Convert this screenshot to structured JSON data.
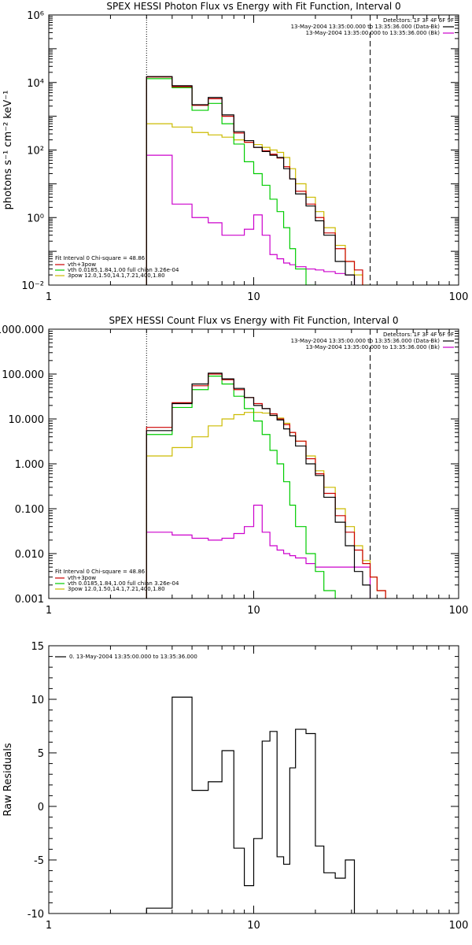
{
  "chart_data": [
    {
      "type": "line",
      "title": "SPEX HESSI Photon Flux vs Energy with Fit Function, Interval 0",
      "xlabel": "",
      "ylabel": "photons s⁻¹ cm⁻² keV⁻¹",
      "xscale": "log",
      "yscale": "log",
      "xlim": [
        1,
        100
      ],
      "ylim": [
        0.01,
        1000000
      ],
      "x_ticks": [
        1,
        10,
        100
      ],
      "x_tick_labels": [
        "1",
        "10",
        "100"
      ],
      "y_ticks": [
        0.01,
        1,
        100,
        10000,
        1000000
      ],
      "y_tick_labels": [
        "10⁻²",
        "10⁰",
        "10²",
        "10⁴",
        "10⁶"
      ],
      "vlines": {
        "dotted": 3.0,
        "dashed": 37.0
      },
      "legend_top": {
        "header": "Detectors: 1F 3F 4F 6F 9F",
        "entries": [
          {
            "label": "13-May-2004 13:35:00.000 to 13:35:36.000 (Data-Bk)",
            "color": "#000000"
          },
          {
            "label": "13-May-2004 13:35:00.000 to 13:35:36.000 (Bk)",
            "color": "#cc00cc"
          }
        ]
      },
      "legend_bottom": {
        "header": "Fit Interval 0   Chi-square = 48.86",
        "entries": [
          {
            "label": "vth+3pow",
            "color": "#cc0000"
          },
          {
            "label": "vth 0.0185,1.84,1.00  full chian 3.26e-04",
            "color": "#00cc00"
          },
          {
            "label": "3pow 12.0,1.50,14.1,7.21,400,1.80",
            "color": "#ccbb00"
          }
        ]
      },
      "edges": [
        3.0,
        4.0,
        5.0,
        6.0,
        7.0,
        8.0,
        9.0,
        10.0,
        11.0,
        12.0,
        13.0,
        14.0,
        15.0,
        16.0,
        18.0,
        20.0,
        22.0,
        25.0,
        28.0,
        31.0,
        34.0,
        37.0,
        40.0,
        44.0,
        49.0
      ],
      "series": [
        {
          "name": "Data-Bk",
          "color": "#000000",
          "values": [
            15000,
            8000,
            2200,
            3600,
            1100,
            350,
            190,
            120,
            90,
            70,
            60,
            28,
            14,
            5,
            2.2,
            0.8,
            0.3,
            0.05,
            0.02
          ]
        },
        {
          "name": "vth+3pow",
          "color": "#cc0000",
          "values": [
            14500,
            7500,
            2100,
            3300,
            1000,
            320,
            170,
            120,
            95,
            75,
            58,
            32,
            14,
            6,
            2.5,
            1.0,
            0.35,
            0.12,
            0.05,
            0.028
          ]
        },
        {
          "name": "vth",
          "color": "#00cc00",
          "values": [
            13000,
            7000,
            1500,
            2400,
            600,
            150,
            45,
            20,
            9,
            3.5,
            1.5,
            0.5,
            0.12,
            0.03,
            0.01
          ]
        },
        {
          "name": "3pow",
          "color": "#ccbb00",
          "values": [
            600,
            480,
            330,
            280,
            240,
            200,
            170,
            145,
            120,
            100,
            85,
            60,
            28,
            10,
            4,
            1.5,
            0.5,
            0.15,
            0.05,
            0.02,
            0.01
          ]
        },
        {
          "name": "Bk",
          "color": "#cc00cc",
          "values": [
            70,
            2.5,
            1.0,
            0.7,
            0.3,
            0.3,
            0.45,
            1.2,
            0.3,
            0.08,
            0.06,
            0.045,
            0.04,
            0.035,
            0.03,
            0.028,
            0.025,
            0.022,
            0.02
          ]
        }
      ]
    },
    {
      "type": "line",
      "title": "SPEX HESSI Count Flux vs Energy with Fit Function, Interval 0",
      "xlabel": "",
      "ylabel": "",
      "xscale": "log",
      "yscale": "log",
      "xlim": [
        1,
        100
      ],
      "ylim": [
        0.001,
        1000
      ],
      "x_ticks": [
        1,
        10,
        100
      ],
      "x_tick_labels": [
        "1",
        "10",
        "100"
      ],
      "y_ticks": [
        0.001,
        0.01,
        0.1,
        1,
        10,
        100,
        1000
      ],
      "y_tick_labels": [
        "0.001",
        "0.010",
        "0.100",
        "1.000",
        "10.000",
        "100.000",
        "1000.000"
      ],
      "vlines": {
        "dotted": 3.0,
        "dashed": 37.0
      },
      "legend_top": {
        "header": "Detectors: 1F 3F 4F 6F 9F",
        "entries": [
          {
            "label": "13-May-2004 13:35:00.000 to 13:35:36.000 (Data-Bk)",
            "color": "#000000"
          },
          {
            "label": "13-May-2004 13:35:00.000 to 13:35:36.000 (Bk)",
            "color": "#cc00cc"
          }
        ]
      },
      "legend_bottom": {
        "header": "Fit Interval 0   Chi-square = 48.86",
        "entries": [
          {
            "label": "vth+3pow",
            "color": "#cc0000"
          },
          {
            "label": "vth 0.0185,1.84,1.00  full chian 3.26e-04",
            "color": "#00cc00"
          },
          {
            "label": "3pow 12.0,1.50,14.1,7.21,400,1.80",
            "color": "#ccbb00"
          }
        ]
      },
      "edges": [
        3.0,
        4.0,
        5.0,
        6.0,
        7.0,
        8.0,
        9.0,
        10.0,
        11.0,
        12.0,
        13.0,
        14.0,
        15.0,
        16.0,
        18.0,
        20.0,
        22.0,
        25.0,
        28.0,
        31.0,
        34.0,
        37.0,
        40.0,
        44.0,
        49.0
      ],
      "series": [
        {
          "name": "Data-Bk",
          "color": "#000000",
          "values": [
            5.5,
            22,
            60,
            105,
            78,
            48,
            30,
            20,
            17,
            12,
            9.5,
            6,
            4.2,
            2.5,
            1.0,
            0.55,
            0.18,
            0.05,
            0.015,
            0.004,
            0.002
          ]
        },
        {
          "name": "vth+3pow",
          "color": "#cc0000",
          "values": [
            6.5,
            23,
            55,
            100,
            75,
            45,
            30,
            22,
            17,
            13,
            10,
            7.5,
            5,
            3.2,
            1.3,
            0.6,
            0.22,
            0.07,
            0.03,
            0.012,
            0.006,
            0.003,
            0.0015
          ]
        },
        {
          "name": "vth",
          "color": "#00cc00",
          "values": [
            4.5,
            18,
            45,
            90,
            60,
            32,
            17,
            9,
            4.5,
            2,
            1.0,
            0.4,
            0.12,
            0.04,
            0.01,
            0.004,
            0.0015
          ]
        },
        {
          "name": "3pow",
          "color": "#ccbb00",
          "values": [
            1.5,
            2.3,
            4,
            7,
            10,
            12.5,
            14,
            14,
            13.5,
            12,
            10.5,
            8,
            5,
            3.2,
            1.5,
            0.7,
            0.3,
            0.1,
            0.04,
            0.015,
            0.007,
            0.003,
            0.0015
          ]
        },
        {
          "name": "Bk",
          "color": "#cc00cc",
          "values": [
            0.03,
            0.026,
            0.022,
            0.02,
            0.022,
            0.028,
            0.04,
            0.12,
            0.03,
            0.015,
            0.012,
            0.01,
            0.009,
            0.008,
            0.006,
            0.005,
            0.005,
            0.005,
            0.005,
            0.005,
            0.005
          ]
        }
      ]
    },
    {
      "type": "line",
      "title": "",
      "xlabel": "",
      "ylabel": "Raw Residuals",
      "xscale": "log",
      "yscale": "linear",
      "xlim": [
        1,
        100
      ],
      "ylim": [
        -10,
        15
      ],
      "x_ticks": [
        1,
        10,
        100
      ],
      "x_tick_labels": [
        "1",
        "10",
        "100"
      ],
      "y_ticks": [
        -10,
        -5,
        0,
        5,
        10,
        15
      ],
      "y_tick_labels": [
        "-10",
        "-5",
        "0",
        "5",
        "10",
        "15"
      ],
      "legend_top": {
        "header": "",
        "entries": [
          {
            "label": "0. 13-May-2004 13:35:00.000 to 13:35:36.000",
            "color": "#000000"
          }
        ]
      },
      "edges": [
        3.0,
        4.0,
        5.0,
        6.0,
        7.0,
        8.0,
        9.0,
        10.0,
        11.0,
        12.0,
        13.0,
        14.0,
        15.0,
        16.0,
        18.0,
        20.0,
        22.0,
        25.0,
        28.0,
        31.0,
        34.0,
        37.0
      ],
      "series": [
        {
          "name": "Residuals",
          "color": "#000000",
          "values": [
            -9.5,
            10.2,
            1.5,
            2.3,
            5.2,
            -3.9,
            -7.4,
            -3,
            6.1,
            7.0,
            -4.7,
            -5.4,
            3.6,
            7.2,
            6.8,
            -3.7,
            -6.2,
            -6.7,
            -5
          ]
        }
      ]
    }
  ]
}
